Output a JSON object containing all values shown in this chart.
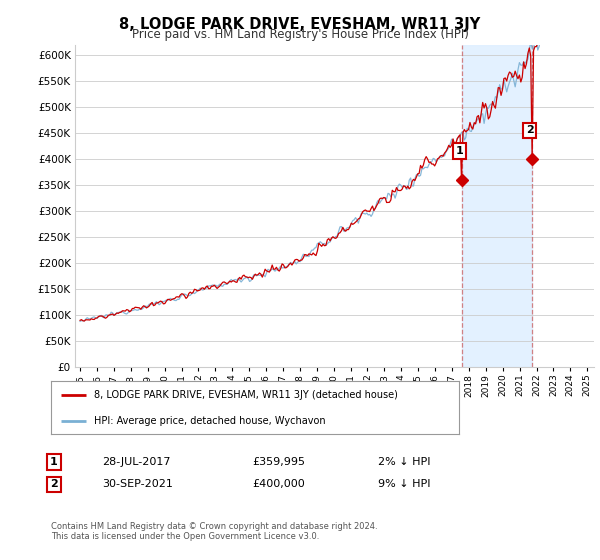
{
  "title": "8, LODGE PARK DRIVE, EVESHAM, WR11 3JY",
  "subtitle": "Price paid vs. HM Land Registry's House Price Index (HPI)",
  "ylabel_ticks": [
    "£0",
    "£50K",
    "£100K",
    "£150K",
    "£200K",
    "£250K",
    "£300K",
    "£350K",
    "£400K",
    "£450K",
    "£500K",
    "£550K",
    "£600K"
  ],
  "ytick_values": [
    0,
    50000,
    100000,
    150000,
    200000,
    250000,
    300000,
    350000,
    400000,
    450000,
    500000,
    550000,
    600000
  ],
  "ylim": [
    0,
    620000
  ],
  "sale1_year": 2017.58,
  "sale1_price": 359995,
  "sale2_year": 2021.75,
  "sale2_price": 400000,
  "line_color_red": "#cc0000",
  "line_color_blue": "#7ab0d4",
  "shaded_color": "#ddeeff",
  "legend_line1": "8, LODGE PARK DRIVE, EVESHAM, WR11 3JY (detached house)",
  "legend_line2": "HPI: Average price, detached house, Wychavon",
  "footer": "Contains HM Land Registry data © Crown copyright and database right 2024.\nThis data is licensed under the Open Government Licence v3.0.",
  "background_color": "#ffffff",
  "grid_color": "#cccccc"
}
